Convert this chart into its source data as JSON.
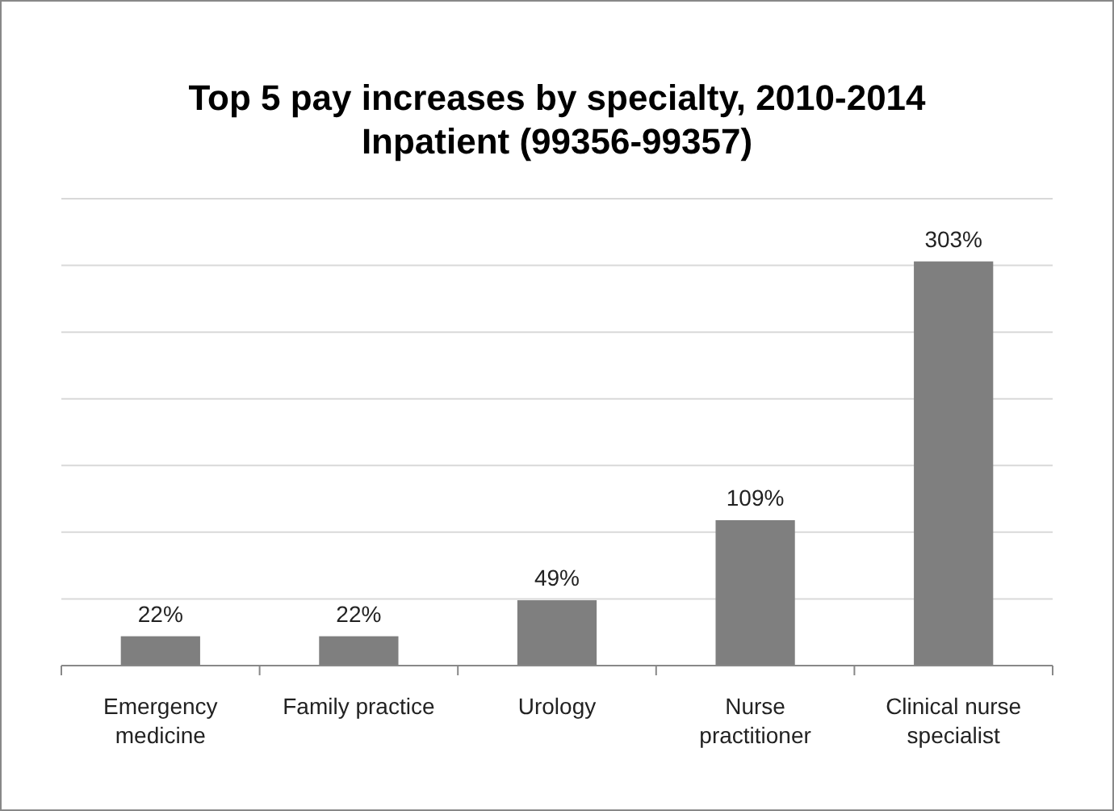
{
  "chart_data": {
    "type": "bar",
    "title": "Top 5 pay increases by specialty, 2010-2014\nInpatient (99356-99357)",
    "categories": [
      "Emergency medicine",
      "Family practice",
      "Urology",
      "Nurse practitioner",
      "Clinical nurse specialist"
    ],
    "values": [
      22,
      22,
      49,
      109,
      303
    ],
    "value_labels": [
      "22%",
      "22%",
      "49%",
      "109%",
      "303%"
    ],
    "color": "#7f7f7f",
    "ylim": [
      0,
      350
    ],
    "yticks": [
      {
        "value": 0,
        "label": null
      },
      {
        "value": 50,
        "label": null
      },
      {
        "value": 100,
        "label": null
      },
      {
        "value": 150,
        "label": null
      },
      {
        "value": 200,
        "label": null
      },
      {
        "value": 250,
        "label": null
      },
      {
        "value": 300,
        "label": null
      },
      {
        "value": 350,
        "label": null
      }
    ],
    "grid": true,
    "tick_labels": "x"
  }
}
